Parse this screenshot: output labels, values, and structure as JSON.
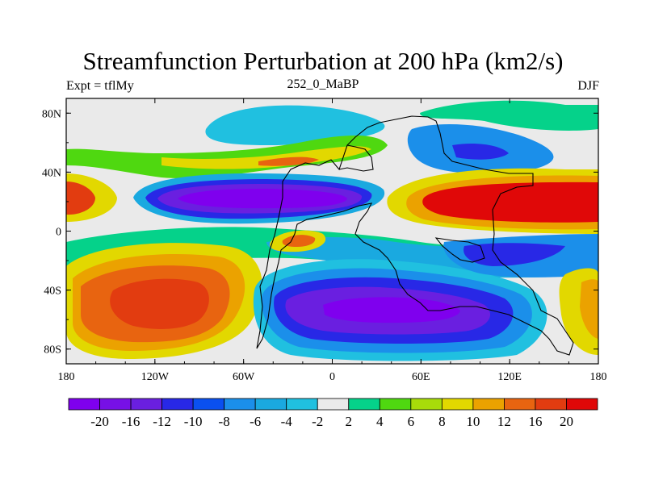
{
  "title": "Streamfunction Perturbation at 200 hPa (km2/s)",
  "subtitle_left": "Expt = tflMy",
  "subtitle_center": "252_0_MaBP",
  "subtitle_right": "DJF",
  "map": {
    "projection": "cylindrical equidistant",
    "lon_range": [
      -180,
      180
    ],
    "lat_range": [
      -90,
      90
    ],
    "x_ticks": [
      {
        "value": -180,
        "label": "180"
      },
      {
        "value": -120,
        "label": "120W"
      },
      {
        "value": -60,
        "label": "60W"
      },
      {
        "value": 0,
        "label": "0"
      },
      {
        "value": 60,
        "label": "60E"
      },
      {
        "value": 120,
        "label": "120E"
      },
      {
        "value": 180,
        "label": "180"
      }
    ],
    "y_ticks": [
      {
        "value": 80,
        "label": "80N"
      },
      {
        "value": 40,
        "label": "40N"
      },
      {
        "value": 0,
        "label": "0"
      },
      {
        "value": -40,
        "label": "40S"
      },
      {
        "value": -80,
        "label": "80S"
      }
    ]
  },
  "colorbar": {
    "colors": [
      "#7f00ee",
      "#7710e6",
      "#6a1fe0",
      "#2828e6",
      "#0a50f0",
      "#1b8fea",
      "#1aa9e0",
      "#20c0e0",
      "#eaeaea",
      "#05d28a",
      "#4fd810",
      "#a8dc0a",
      "#e2d800",
      "#eba200",
      "#e86410",
      "#e23c10",
      "#e00808"
    ],
    "labels": [
      "-20",
      "-16",
      "-12",
      "-10",
      "-8",
      "-6",
      "-4",
      "-2",
      "2",
      "4",
      "6",
      "8",
      "10",
      "12",
      "16",
      "20"
    ]
  }
}
